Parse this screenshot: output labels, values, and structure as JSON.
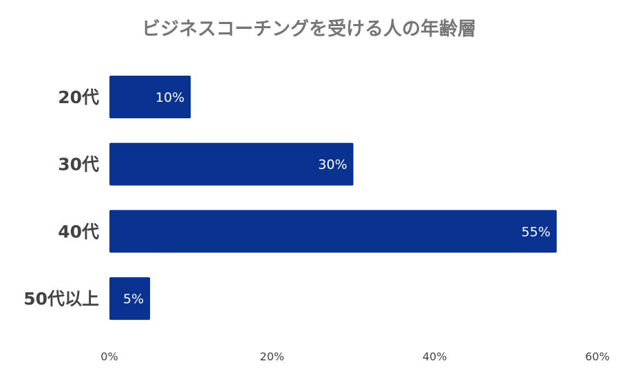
{
  "chart_data": {
    "type": "bar",
    "orientation": "horizontal",
    "title": "ビジネスコーチングを受ける人の年齢層",
    "categories": [
      "20代",
      "30代",
      "40代",
      "50代以上"
    ],
    "values": [
      10,
      30,
      55,
      5
    ],
    "data_labels": [
      "10%",
      "30%",
      "55%",
      "5%"
    ],
    "xlim": [
      0,
      60
    ],
    "x_ticks": [
      0,
      20,
      40,
      60
    ],
    "x_tick_labels": [
      "0%",
      "20%",
      "40%",
      "60%"
    ],
    "xlabel": "",
    "ylabel": "",
    "grid": false,
    "legend": "none",
    "bar_color": "#0a3290",
    "label_color": "#ffffff"
  }
}
